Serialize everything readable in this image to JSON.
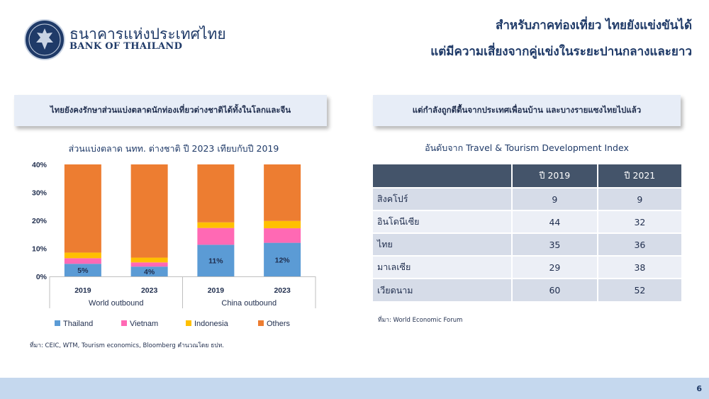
{
  "brand": {
    "name_th": "ธนาคารแห่งประเทศไทย",
    "name_en": "BANK OF THAILAND",
    "logo_icon": "garuda-seal-icon"
  },
  "header": {
    "line1": "สำหรับภาคท่องเที่ยว ไทยยังแข่งขันได้",
    "line2": "แต่มีความเสี่ยงจากคู่แข่งในระยะปานกลางและยาว"
  },
  "left_panel": {
    "box_text": "ไทยยังคงรักษาส่วนแบ่งตลาดนักท่องเที่ยวต่างชาติได้ทั้งในโลกและจีน",
    "source": "ที่มา: CEIC, WTM, Tourism economics, Bloomberg คำนวณโดย ธปท."
  },
  "chart_data": {
    "type": "bar",
    "stacked": true,
    "title": "ส่วนแบ่งตลาด นทท. ต่างชาติ ปี 2023 เทียบกับปี 2019",
    "categories": [
      "2019",
      "2023",
      "2019",
      "2023"
    ],
    "groups": [
      {
        "label": "World outbound",
        "categories": [
          "2019",
          "2023"
        ]
      },
      {
        "label": "China outbound",
        "categories": [
          "2019",
          "2023"
        ]
      }
    ],
    "series": [
      {
        "name": "Thailand",
        "color": "#5b9bd5",
        "values": [
          4.5,
          3.5,
          11.3,
          12.0
        ],
        "labels": [
          "5%",
          "4%",
          "11%",
          "12%"
        ]
      },
      {
        "name": "Vietnam",
        "color": "#ff69b4",
        "values": [
          2.0,
          1.5,
          6.0,
          5.2
        ],
        "labels": []
      },
      {
        "name": "Indonesia",
        "color": "#ffc000",
        "values": [
          2.0,
          1.7,
          2.0,
          2.6
        ],
        "labels": []
      },
      {
        "name": "Others",
        "color": "#ed7d31",
        "values": [
          31.5,
          33.3,
          20.7,
          20.2
        ],
        "labels": []
      }
    ],
    "yticks": [
      "0%",
      "10%",
      "20%",
      "30%",
      "40%"
    ],
    "ylim": [
      0,
      40
    ],
    "legend_position": "bottom",
    "grid": false
  },
  "right_panel": {
    "box_text": "แต่กำลังถูกตีตื้นจากประเทศเพื่อนบ้าน และบางรายแซงไทยไปแล้ว",
    "table_title": "อันดับจาก Travel & Tourism Development Index",
    "columns": [
      "",
      "ปี 2019",
      "ปี 2021"
    ],
    "rows": [
      {
        "country": "สิงคโปร์",
        "y2019": "9",
        "y2021": "9"
      },
      {
        "country": "อินโดนีเซีย",
        "y2019": "44",
        "y2021": "32"
      },
      {
        "country": "ไทย",
        "y2019": "35",
        "y2021": "36"
      },
      {
        "country": "มาเลเซีย",
        "y2019": "29",
        "y2021": "38"
      },
      {
        "country": "เวียดนาม",
        "y2019": "60",
        "y2021": "52"
      }
    ],
    "header_color": "#44546a",
    "source": "ที่มา: World Economic Forum"
  },
  "footer": {
    "page_number": "6"
  }
}
